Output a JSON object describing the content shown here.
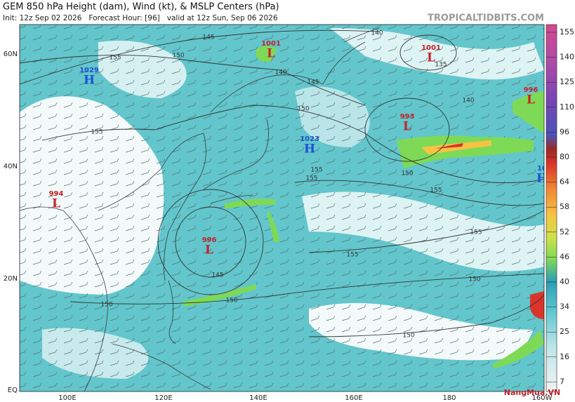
{
  "header": {
    "title": "GEM 850 hPa Height (dam), Wind (kt), & MSLP Centers (hPa)",
    "subtitle": "Init: 12z Sep 02 2026   Forecast Hour: [96]   valid at 12z Sun, Sep 06 2026",
    "site": "TROPICALTIDBITS.COM"
  },
  "latitudes": [
    "60N",
    "40N",
    "20N",
    "EQ"
  ],
  "longitudes": [
    "100E",
    "120E",
    "140E",
    "160E",
    "180",
    "160W"
  ],
  "colorbar": [
    155,
    140,
    125,
    110,
    96,
    80,
    64,
    58,
    52,
    46,
    40,
    34,
    25,
    16,
    7
  ],
  "centers": [
    {
      "value": "1001",
      "letter": "L"
    },
    {
      "value": "1001",
      "letter": "L"
    },
    {
      "value": "1029",
      "letter": "H"
    },
    {
      "value": "996",
      "letter": "L"
    },
    {
      "value": "993",
      "letter": "L"
    },
    {
      "value": "1023",
      "letter": "H"
    },
    {
      "value": "994",
      "letter": "L"
    },
    {
      "value": "996",
      "letter": "L"
    },
    {
      "value": "10",
      "letter": "H"
    }
  ],
  "contour_labels": [
    "145",
    "150",
    "155",
    "140",
    "145",
    "150",
    "155",
    "140",
    "135",
    "140",
    "155",
    "155",
    "150",
    "155",
    "155",
    "155",
    "150",
    "150",
    "145",
    "150",
    "150"
  ],
  "watermark": "NangMua.VN"
}
